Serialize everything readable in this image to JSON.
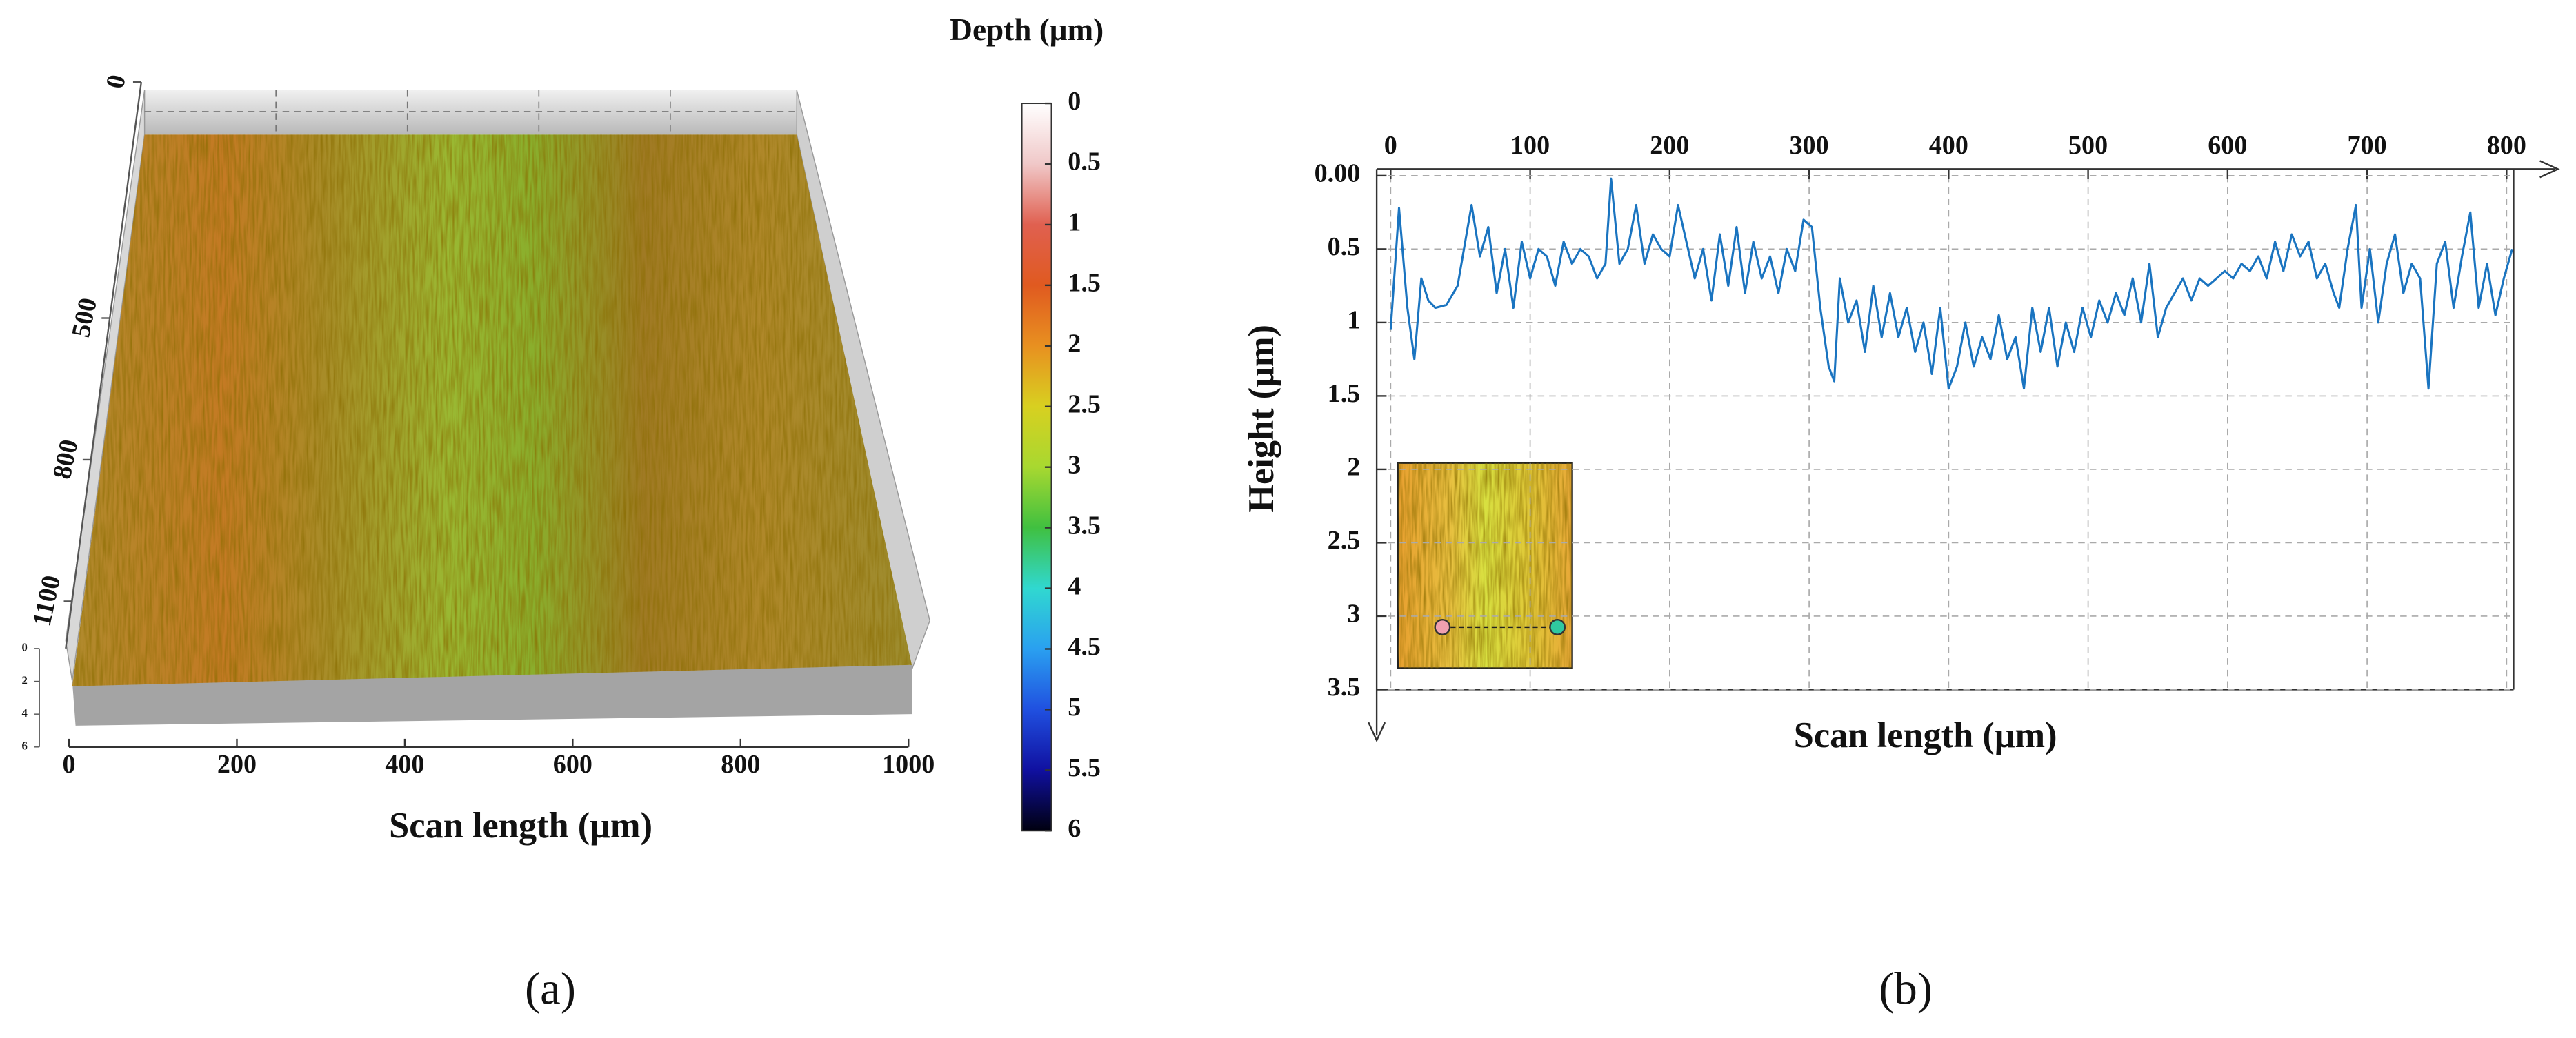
{
  "panel_labels": [
    "(a)",
    "(b)"
  ],
  "chart_data": [
    {
      "type": "surface",
      "title": "Depth (μm)",
      "xlabel": "Scan length (μm)",
      "xlim": [
        0,
        1000
      ],
      "xticks": [
        0,
        200,
        400,
        600,
        800,
        1000
      ],
      "ylim": [
        0,
        1200
      ],
      "yticks": [
        0,
        500,
        800,
        1100
      ],
      "zlim": [
        0,
        6
      ],
      "zticks": [
        0,
        2,
        4,
        6
      ],
      "colorbar": {
        "lim": [
          0,
          6
        ],
        "ticks": [
          0,
          0.5,
          1,
          1.5,
          2,
          2.5,
          3,
          3.5,
          4,
          4.5,
          5,
          5.5,
          6
        ],
        "colors": [
          "#ffffff",
          "#f0c8c8",
          "#e06050",
          "#e05a20",
          "#e89020",
          "#d8d020",
          "#a8d830",
          "#40c040",
          "#30d8d0",
          "#2aa0f0",
          "#2050e0",
          "#1010a0",
          "#000010"
        ]
      }
    },
    {
      "type": "line",
      "xlabel": "Scan length (μm)",
      "ylabel": "Height (μm)",
      "xlim": [
        -10,
        805
      ],
      "xticks": [
        0,
        100,
        200,
        300,
        400,
        500,
        600,
        700,
        800
      ],
      "ylim": [
        0,
        3.5
      ],
      "y_inverted": true,
      "yticks": [
        {
          "value": 0,
          "label": "0.00"
        },
        0.5,
        1,
        1.5,
        2,
        2.5,
        3,
        3.5
      ],
      "grid": true,
      "series": [
        {
          "color": "#1a74c0",
          "x": [
            0,
            6,
            12,
            17,
            22,
            27,
            32,
            40,
            48,
            58,
            64,
            70,
            76,
            82,
            88,
            94,
            100,
            106,
            112,
            118,
            124,
            130,
            136,
            142,
            148,
            154,
            158,
            164,
            170,
            176,
            182,
            188,
            194,
            200,
            206,
            212,
            218,
            224,
            230,
            236,
            242,
            248,
            254,
            260,
            266,
            272,
            278,
            284,
            290,
            296,
            302,
            308,
            314,
            318,
            322,
            328,
            334,
            340,
            346,
            352,
            358,
            364,
            370,
            376,
            382,
            388,
            394,
            400,
            406,
            412,
            418,
            424,
            430,
            436,
            442,
            448,
            454,
            460,
            466,
            472,
            478,
            484,
            490,
            496,
            502,
            508,
            514,
            520,
            526,
            532,
            538,
            544,
            550,
            556,
            562,
            568,
            574,
            580,
            586,
            592,
            598,
            604,
            610,
            616,
            622,
            628,
            634,
            640,
            646,
            652,
            658,
            664,
            670,
            676,
            680,
            686,
            692,
            696,
            702,
            708,
            714,
            720,
            726,
            732,
            738,
            744,
            750,
            756,
            762,
            768,
            774,
            780,
            786,
            792,
            798,
            804
          ],
          "values": [
            1.05,
            0.22,
            0.9,
            1.25,
            0.7,
            0.85,
            0.9,
            0.88,
            0.75,
            0.2,
            0.55,
            0.35,
            0.8,
            0.5,
            0.9,
            0.45,
            0.7,
            0.5,
            0.55,
            0.75,
            0.45,
            0.6,
            0.5,
            0.55,
            0.7,
            0.6,
            0.02,
            0.6,
            0.5,
            0.2,
            0.6,
            0.4,
            0.5,
            0.55,
            0.2,
            0.45,
            0.7,
            0.5,
            0.85,
            0.4,
            0.75,
            0.35,
            0.8,
            0.45,
            0.7,
            0.55,
            0.8,
            0.5,
            0.65,
            0.3,
            0.35,
            0.9,
            1.3,
            1.4,
            0.7,
            1.0,
            0.85,
            1.2,
            0.75,
            1.1,
            0.8,
            1.1,
            0.9,
            1.2,
            1.0,
            1.35,
            0.9,
            1.45,
            1.3,
            1.0,
            1.3,
            1.1,
            1.25,
            0.95,
            1.25,
            1.1,
            1.45,
            0.9,
            1.2,
            0.9,
            1.3,
            1.0,
            1.2,
            0.9,
            1.1,
            0.85,
            1.0,
            0.8,
            0.95,
            0.7,
            1.0,
            0.6,
            1.1,
            0.9,
            0.8,
            0.7,
            0.85,
            0.7,
            0.75,
            0.7,
            0.65,
            0.7,
            0.6,
            0.65,
            0.55,
            0.7,
            0.45,
            0.65,
            0.4,
            0.55,
            0.45,
            0.7,
            0.6,
            0.8,
            0.9,
            0.5,
            0.2,
            0.9,
            0.5,
            1.0,
            0.6,
            0.4,
            0.8,
            0.6,
            0.7,
            1.45,
            0.6,
            0.45,
            0.9,
            0.55,
            0.25,
            0.9,
            0.6,
            0.95,
            0.7,
            0.5
          ]
        }
      ]
    }
  ]
}
